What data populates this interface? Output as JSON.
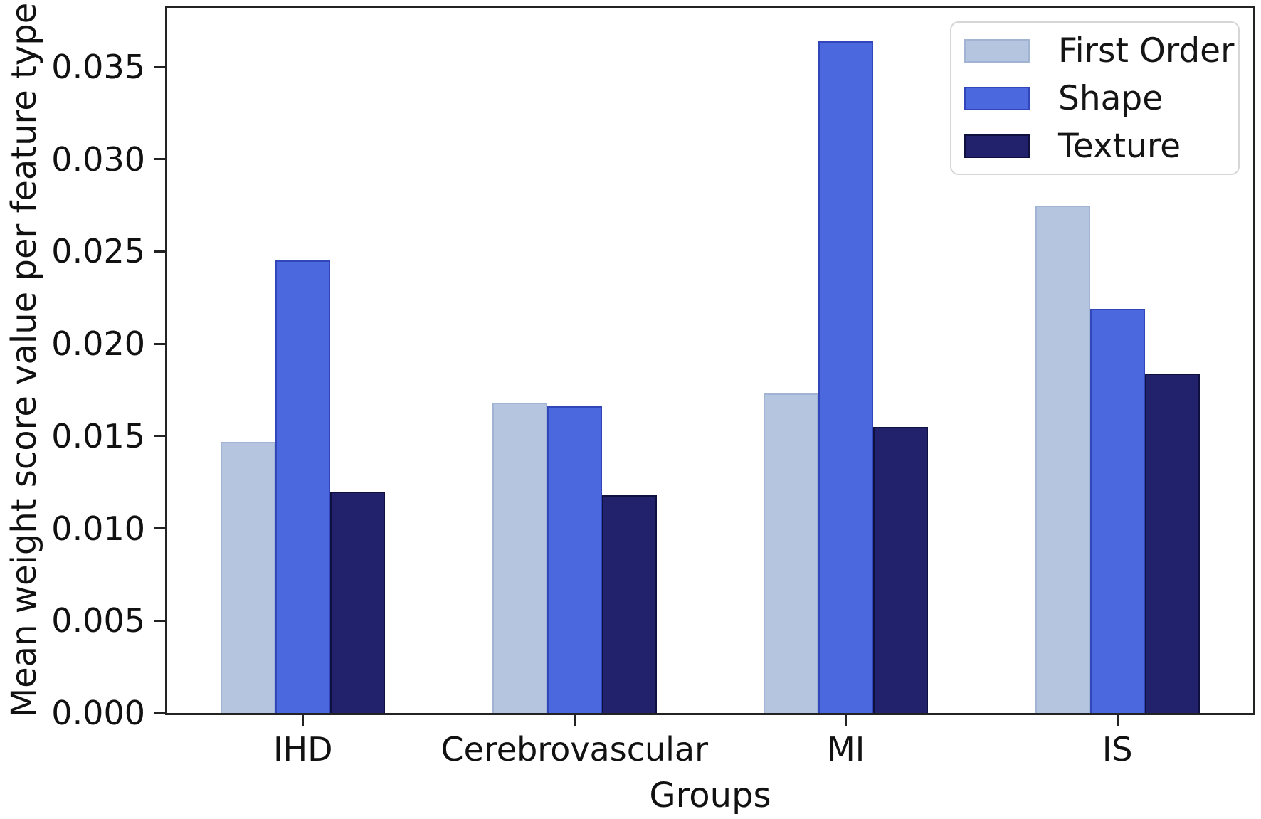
{
  "figure": {
    "title": "",
    "frame_color": "#232323",
    "background": "#ffffff"
  },
  "chart_data": {
    "type": "bar",
    "title": "",
    "xlabel": "Groups",
    "ylabel": "Mean weight score value per feature type",
    "categories": [
      "IHD",
      "Cerebrovascular",
      "MI",
      "IS"
    ],
    "series": [
      {
        "name": "First Order",
        "color": "#b5c4df",
        "edge": "#a2b4d3",
        "values": [
          0.0147,
          0.0168,
          0.0173,
          0.0275
        ]
      },
      {
        "name": "Shape",
        "color": "#4c68de",
        "edge": "#3246bb",
        "values": [
          0.0245,
          0.0166,
          0.0364,
          0.0219
        ]
      },
      {
        "name": "Texture",
        "color": "#22216b",
        "edge": "#10103f",
        "values": [
          0.012,
          0.0118,
          0.0155,
          0.0184
        ]
      }
    ],
    "ylim": [
      0,
      0.0382
    ],
    "yticks": [
      0.0,
      0.005,
      0.01,
      0.015,
      0.02,
      0.025,
      0.03,
      0.035
    ],
    "ytick_labels": [
      "0.000",
      "0.005",
      "0.010",
      "0.015",
      "0.020",
      "0.025",
      "0.030",
      "0.035"
    ],
    "grid": false,
    "legend_position": "upper right"
  }
}
